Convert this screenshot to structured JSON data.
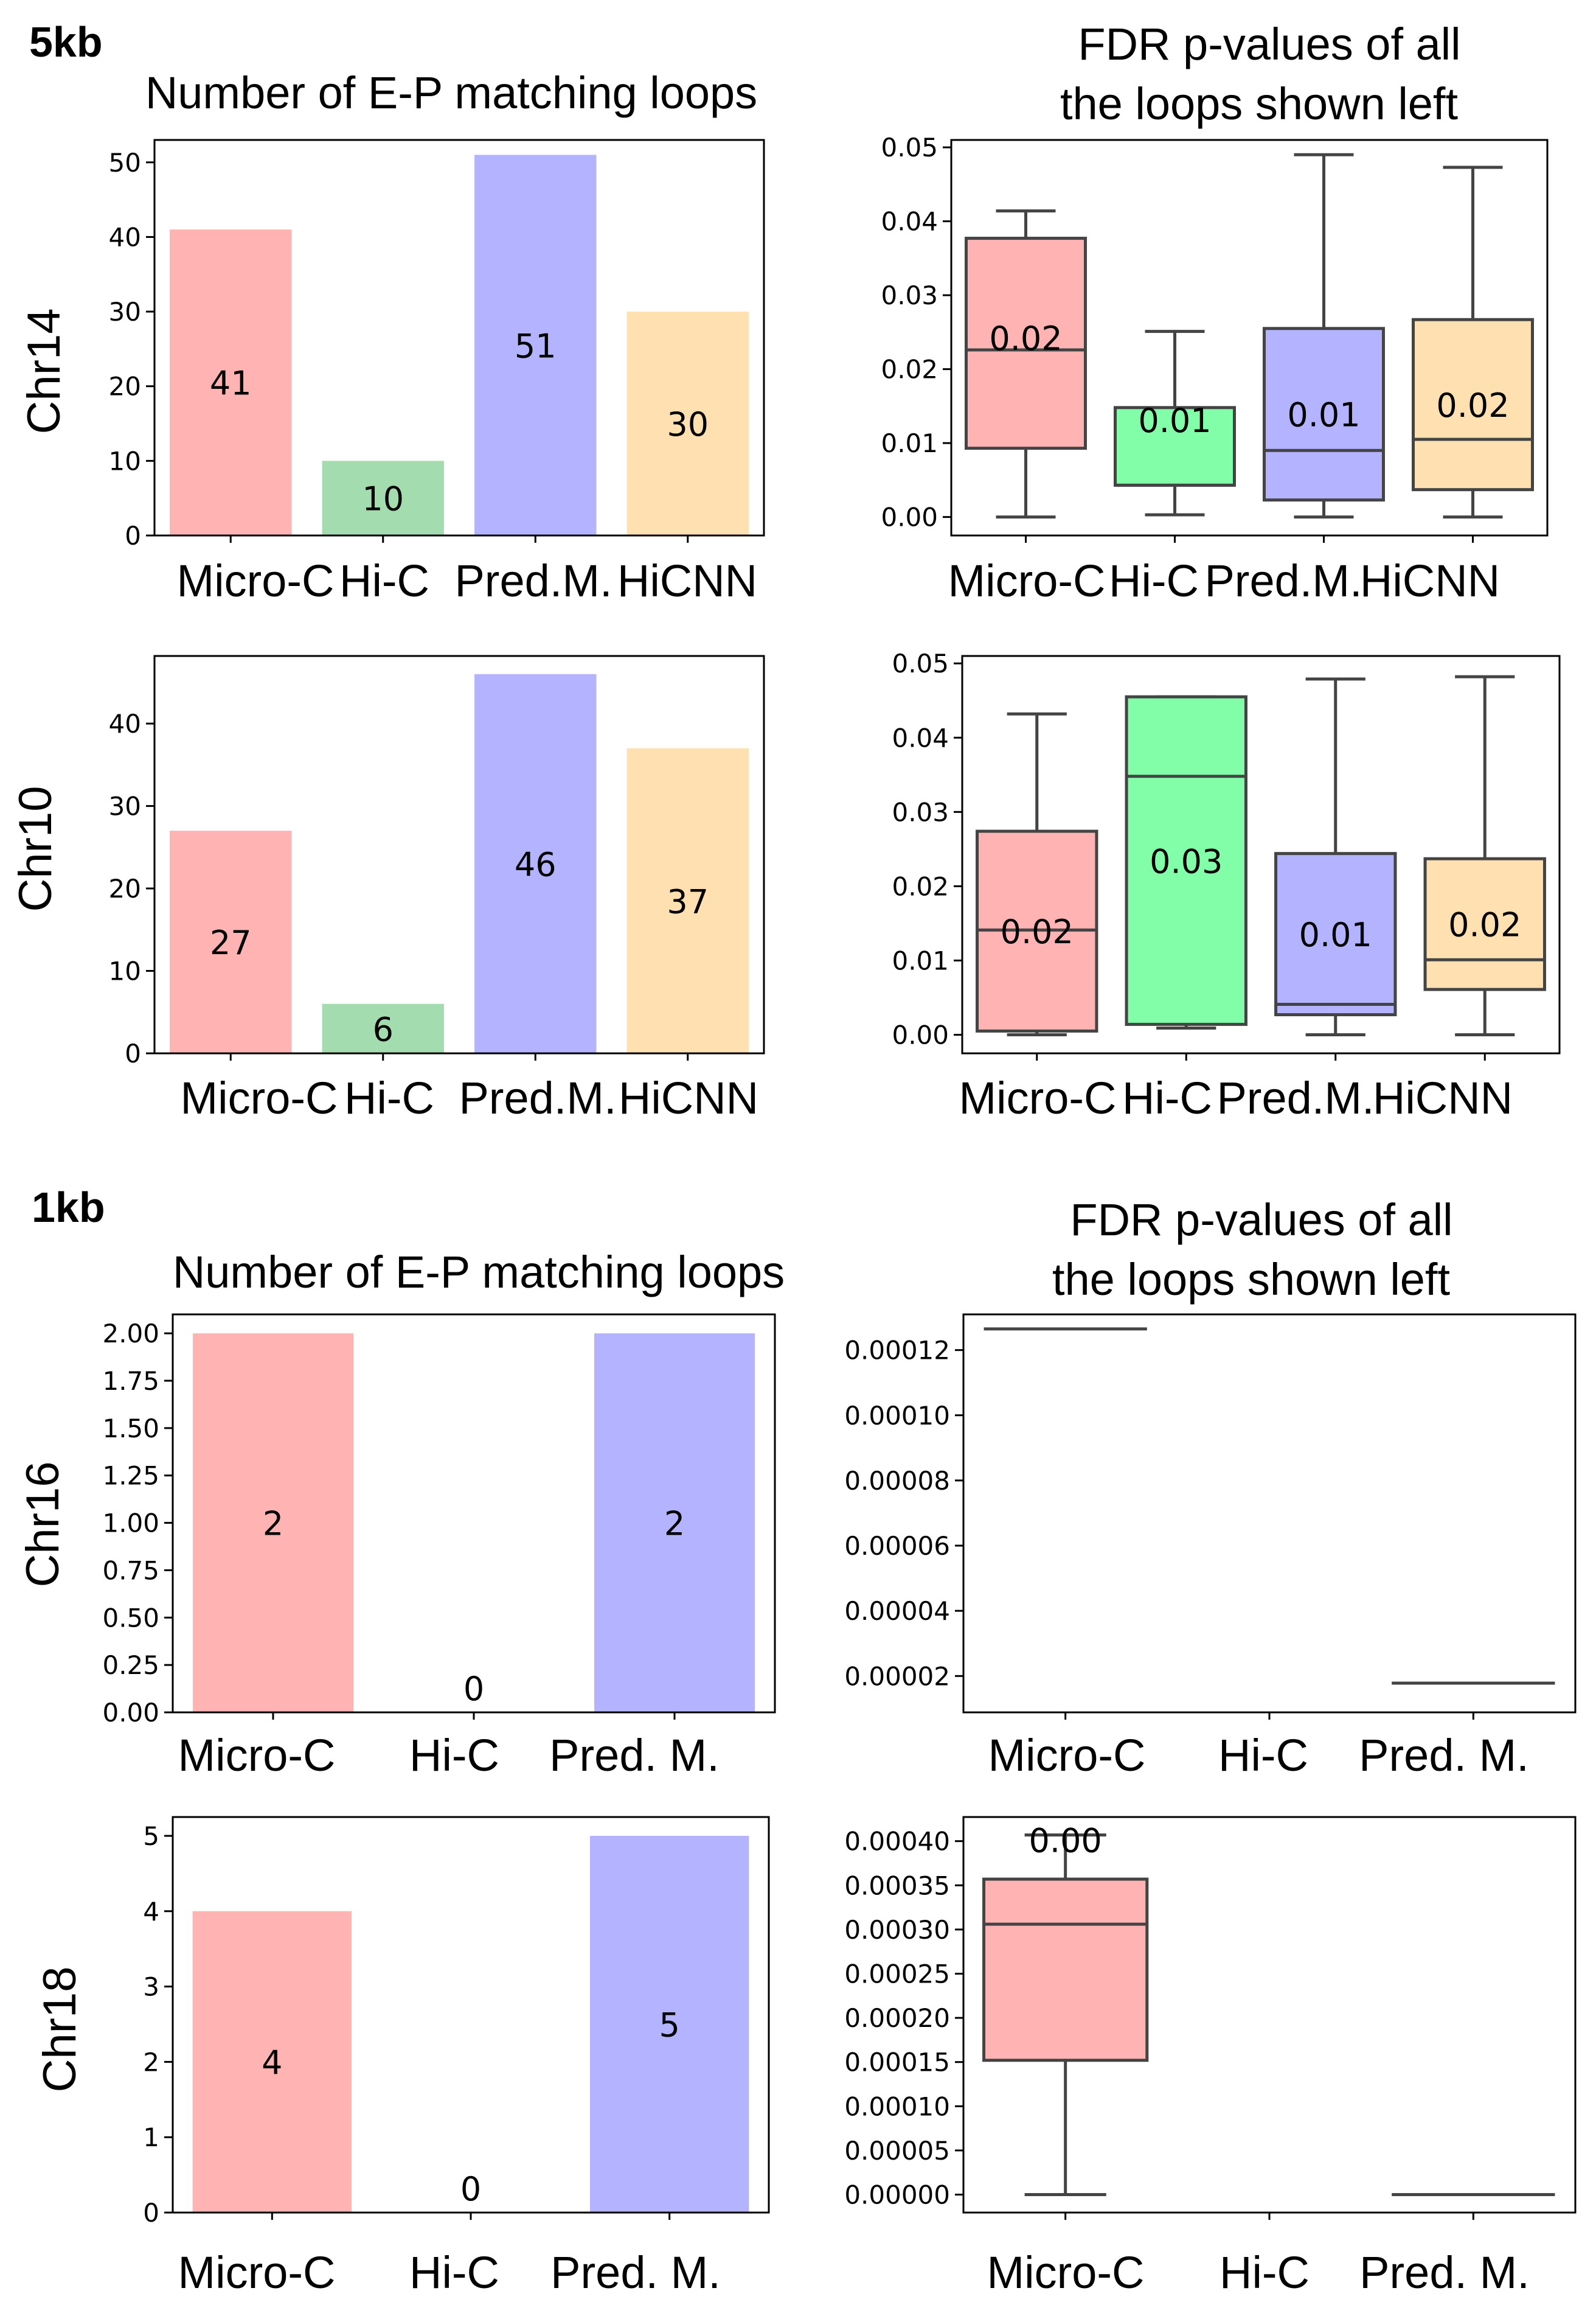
{
  "sections": {
    "kb5": {
      "title": "5kb",
      "left_heading": "Number of  E-P matching loops",
      "right_heading_1": "FDR p-values of all",
      "right_heading_2": "the loops shown left"
    },
    "kb1": {
      "title": "1kb",
      "left_heading": "Number of  E-P matching loops",
      "right_heading_1": "FDR p-values of all",
      "right_heading_2": "the loops shown left"
    }
  },
  "row_labels": {
    "chr14": "Chr14",
    "chr10": "Chr10",
    "chr16": "Chr16",
    "chr18": "Chr18"
  },
  "colors": {
    "micro_c_bar": "#ffb3b3",
    "hi_c_bar": "#a3dcae",
    "pred_m_bar": "#b3b3ff",
    "hicnn_bar": "#ffe0b0",
    "micro_c_box": "#ffb3b3",
    "hi_c_box": "#82fea9",
    "pred_m_box": "#b3b3ff",
    "hicnn_box": "#ffe0b0",
    "line": "#444444"
  },
  "chart_data": [
    {
      "id": "bar_chr14",
      "type": "bar",
      "title": "Number of  E-P matching loops",
      "ylabel": "Chr14",
      "categories": [
        "Micro-C",
        "Hi-C",
        "Pred.M.",
        "HiCNN"
      ],
      "values": [
        41,
        10,
        51,
        30
      ],
      "data_labels": [
        "41",
        "10",
        "51",
        "30"
      ],
      "ylim": [
        0,
        53
      ],
      "yticks": [
        0,
        10,
        20,
        30,
        40,
        50
      ],
      "ytick_labels": [
        "0",
        "10",
        "20",
        "30",
        "40",
        "50"
      ]
    },
    {
      "id": "box_chr14",
      "type": "box",
      "title": "FDR p-values of all the loops shown left",
      "categories": [
        "Micro-C",
        "Hi-C",
        "Pred.M.",
        "HiCNN"
      ],
      "boxes": [
        {
          "min": 0.0,
          "q1": 0.0093,
          "median": 0.0226,
          "q3": 0.0377,
          "max": 0.0414,
          "label": "0.02"
        },
        {
          "min": 0.0003,
          "q1": 0.0043,
          "median": 0.0043,
          "q3": 0.0148,
          "max": 0.0251,
          "label": "0.01"
        },
        {
          "min": 0.0,
          "q1": 0.0023,
          "median": 0.009,
          "q3": 0.0255,
          "max": 0.049,
          "label": "0.01"
        },
        {
          "min": 0.0,
          "q1": 0.0037,
          "median": 0.0105,
          "q3": 0.0267,
          "max": 0.0473,
          "label": "0.02"
        }
      ],
      "ylim": [
        -0.0025,
        0.051
      ],
      "yticks": [
        0,
        0.01,
        0.02,
        0.03,
        0.04,
        0.05
      ],
      "ytick_labels": [
        "0.00",
        "0.01",
        "0.02",
        "0.03",
        "0.04",
        "0.05"
      ]
    },
    {
      "id": "bar_chr10",
      "type": "bar",
      "title": "",
      "ylabel": "Chr10",
      "categories": [
        "Micro-C",
        "Hi-C",
        "Pred.M.",
        "HiCNN"
      ],
      "values": [
        27,
        6,
        46,
        37
      ],
      "data_labels": [
        "27",
        "6",
        "46",
        "37"
      ],
      "ylim": [
        0,
        48.2
      ],
      "yticks": [
        0,
        10,
        20,
        30,
        40
      ],
      "ytick_labels": [
        "0",
        "10",
        "20",
        "30",
        "40"
      ]
    },
    {
      "id": "box_chr10",
      "type": "box",
      "title": "",
      "categories": [
        "Micro-C",
        "Hi-C",
        "Pred.M.",
        "HiCNN"
      ],
      "boxes": [
        {
          "min": 0.0,
          "q1": 0.0005,
          "median": 0.0141,
          "q3": 0.0274,
          "max": 0.0432,
          "label": "0.02"
        },
        {
          "min": 0.0009,
          "q1": 0.0014,
          "median": 0.0348,
          "q3": 0.0455,
          "max": 0.0455,
          "label": "0.03"
        },
        {
          "min": 0.0,
          "q1": 0.0027,
          "median": 0.0041,
          "q3": 0.0244,
          "max": 0.0479,
          "label": "0.01"
        },
        {
          "min": 0.0,
          "q1": 0.0061,
          "median": 0.0101,
          "q3": 0.0237,
          "max": 0.0482,
          "label": "0.02"
        }
      ],
      "ylim": [
        -0.0025,
        0.051
      ],
      "yticks": [
        0,
        0.01,
        0.02,
        0.03,
        0.04,
        0.05
      ],
      "ytick_labels": [
        "0.00",
        "0.01",
        "0.02",
        "0.03",
        "0.04",
        "0.05"
      ]
    },
    {
      "id": "bar_chr16",
      "type": "bar",
      "title": "Number of  E-P matching loops",
      "ylabel": "Chr16",
      "categories": [
        "Micro-C",
        "Hi-C",
        "Pred. M."
      ],
      "values": [
        2,
        0,
        2
      ],
      "data_labels": [
        "2",
        "0",
        "2"
      ],
      "ylim": [
        0,
        2.1
      ],
      "yticks": [
        0,
        0.25,
        0.5,
        0.75,
        1.0,
        1.25,
        1.5,
        1.75,
        2.0
      ],
      "ytick_labels": [
        "0.00",
        "0.25",
        "0.50",
        "0.75",
        "1.00",
        "1.25",
        "1.50",
        "1.75",
        "2.00"
      ]
    },
    {
      "id": "box_chr16",
      "type": "box",
      "title": "FDR p-values of all the loops shown left",
      "categories": [
        "Micro-C",
        "Hi-C",
        "Pred. M."
      ],
      "boxes": [
        {
          "min": 0.0001265,
          "q1": 0.0001265,
          "median": 0.0001265,
          "q3": 0.0001265,
          "max": 0.0001265,
          "label": ""
        },
        null,
        {
          "min": 1.78e-05,
          "q1": 1.78e-05,
          "median": 1.78e-05,
          "q3": 1.78e-05,
          "max": 1.78e-05,
          "label": ""
        }
      ],
      "ylim": [
        8.85e-06,
        0.00013095
      ],
      "yticks": [
        2e-05,
        4e-05,
        6e-05,
        8e-05,
        0.0001,
        0.00012
      ],
      "ytick_labels": [
        "0.00002",
        "0.00004",
        "0.00006",
        "0.00008",
        "0.00010",
        "0.00012"
      ]
    },
    {
      "id": "bar_chr18",
      "type": "bar",
      "title": "",
      "ylabel": "Chr18",
      "categories": [
        "Micro-C",
        "Hi-C",
        "Pred. M."
      ],
      "values": [
        4,
        0,
        5
      ],
      "data_labels": [
        "4",
        "0",
        "5"
      ],
      "ylim": [
        0,
        5.25
      ],
      "yticks": [
        0,
        1,
        2,
        3,
        4,
        5
      ],
      "ytick_labels": [
        "0",
        "1",
        "2",
        "3",
        "4",
        "5"
      ]
    },
    {
      "id": "box_chr18",
      "type": "box",
      "title": "",
      "categories": [
        "Micro-C",
        "Hi-C",
        "Pred. M."
      ],
      "boxes": [
        {
          "min": 0.0,
          "q1": 0.000152,
          "median": 0.000306,
          "q3": 0.000357,
          "max": 0.000407,
          "label": "0.00"
        },
        null,
        {
          "min": 0.0,
          "q1": 0.0,
          "median": 0.0,
          "q3": 0.0,
          "max": 0.0,
          "label": ""
        }
      ],
      "ylim": [
        -2.03e-05,
        0.0004273
      ],
      "yticks": [
        0,
        5e-05,
        0.0001,
        0.00015,
        0.0002,
        0.00025,
        0.0003,
        0.00035,
        0.0004
      ],
      "ytick_labels": [
        "0.00000",
        "0.00005",
        "0.00010",
        "0.00015",
        "0.00020",
        "0.00025",
        "0.00030",
        "0.00035",
        "0.00040"
      ]
    }
  ]
}
